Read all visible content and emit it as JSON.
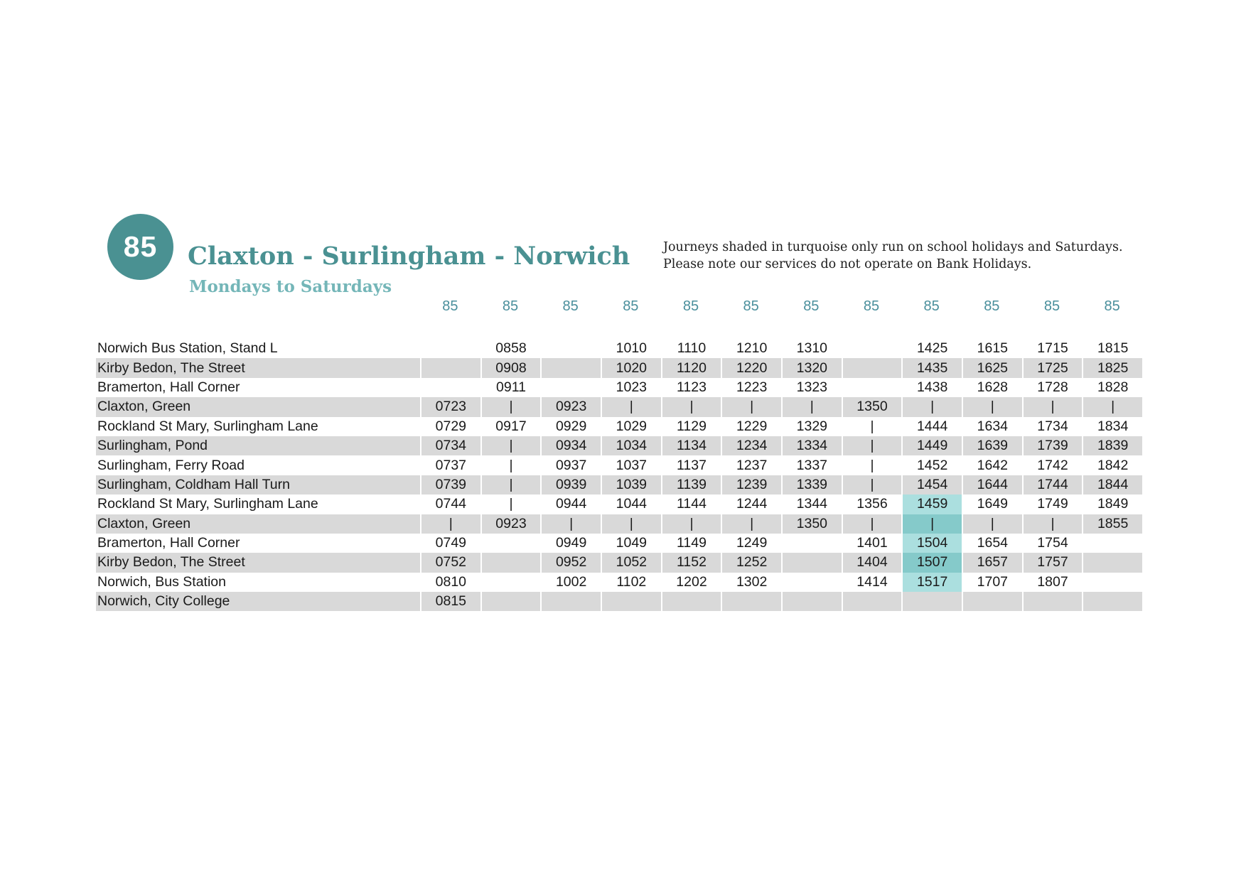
{
  "header": {
    "route_number": "85",
    "title": "Claxton - Surlingham - Norwich",
    "subtitle": "Mondays to Saturdays",
    "note_line1": "Journeys shaded in turquoise only run on school holidays and Saturdays.",
    "note_line2": "Please note our services do not operate on Bank Holidays."
  },
  "colors": {
    "teal": "#4a9192",
    "teal_light": "#74b6b8",
    "row_shade_gray": "#d9d9d9",
    "turquoise_highlight_light": "#abdfdf",
    "turquoise_highlight_dark": "#85caca"
  },
  "timetable": {
    "column_headers": [
      "85",
      "85",
      "85",
      "85",
      "85",
      "85",
      "85",
      "85",
      "85",
      "85",
      "85",
      "85"
    ],
    "highlight": {
      "column_index": 8,
      "row_indexes": [
        8,
        9,
        10,
        11,
        12
      ]
    },
    "rows": [
      {
        "stop": "Norwich Bus Station, Stand L",
        "times": [
          "",
          "0858",
          "",
          "1010",
          "1110",
          "1210",
          "1310",
          "",
          "1425",
          "1615",
          "1715",
          "1815"
        ]
      },
      {
        "stop": "Kirby Bedon, The Street",
        "times": [
          "",
          "0908",
          "",
          "1020",
          "1120",
          "1220",
          "1320",
          "",
          "1435",
          "1625",
          "1725",
          "1825"
        ]
      },
      {
        "stop": "Bramerton, Hall Corner",
        "times": [
          "",
          "0911",
          "",
          "1023",
          "1123",
          "1223",
          "1323",
          "",
          "1438",
          "1628",
          "1728",
          "1828"
        ]
      },
      {
        "stop": "Claxton, Green",
        "times": [
          "0723",
          "|",
          "0923",
          "|",
          "|",
          "|",
          "|",
          "1350",
          "|",
          "|",
          "|",
          "|"
        ]
      },
      {
        "stop": "Rockland St Mary, Surlingham Lane",
        "times": [
          "0729",
          "0917",
          "0929",
          "1029",
          "1129",
          "1229",
          "1329",
          "|",
          "1444",
          "1634",
          "1734",
          "1834"
        ]
      },
      {
        "stop": "Surlingham, Pond",
        "times": [
          "0734",
          "|",
          "0934",
          "1034",
          "1134",
          "1234",
          "1334",
          "|",
          "1449",
          "1639",
          "1739",
          "1839"
        ]
      },
      {
        "stop": "Surlingham, Ferry Road",
        "times": [
          "0737",
          "|",
          "0937",
          "1037",
          "1137",
          "1237",
          "1337",
          "|",
          "1452",
          "1642",
          "1742",
          "1842"
        ]
      },
      {
        "stop": "Surlingham, Coldham Hall Turn",
        "times": [
          "0739",
          "|",
          "0939",
          "1039",
          "1139",
          "1239",
          "1339",
          "|",
          "1454",
          "1644",
          "1744",
          "1844"
        ]
      },
      {
        "stop": "Rockland St Mary, Surlingham Lane",
        "times": [
          "0744",
          "|",
          "0944",
          "1044",
          "1144",
          "1244",
          "1344",
          "1356",
          "1459",
          "1649",
          "1749",
          "1849"
        ]
      },
      {
        "stop": "Claxton, Green",
        "times": [
          "|",
          "0923",
          "|",
          "|",
          "|",
          "|",
          "1350",
          "|",
          "|",
          "|",
          "|",
          "1855"
        ]
      },
      {
        "stop": "Bramerton, Hall Corner",
        "times": [
          "0749",
          "",
          "0949",
          "1049",
          "1149",
          "1249",
          "",
          "1401",
          "1504",
          "1654",
          "1754",
          ""
        ]
      },
      {
        "stop": "Kirby Bedon, The Street",
        "times": [
          "0752",
          "",
          "0952",
          "1052",
          "1152",
          "1252",
          "",
          "1404",
          "1507",
          "1657",
          "1757",
          ""
        ]
      },
      {
        "stop": "Norwich, Bus Station",
        "times": [
          "0810",
          "",
          "1002",
          "1102",
          "1202",
          "1302",
          "",
          "1414",
          "1517",
          "1707",
          "1807",
          ""
        ]
      },
      {
        "stop": "Norwich, City College",
        "times": [
          "0815",
          "",
          "",
          "",
          "",
          "",
          "",
          "",
          "",
          "",
          "",
          ""
        ]
      }
    ]
  }
}
